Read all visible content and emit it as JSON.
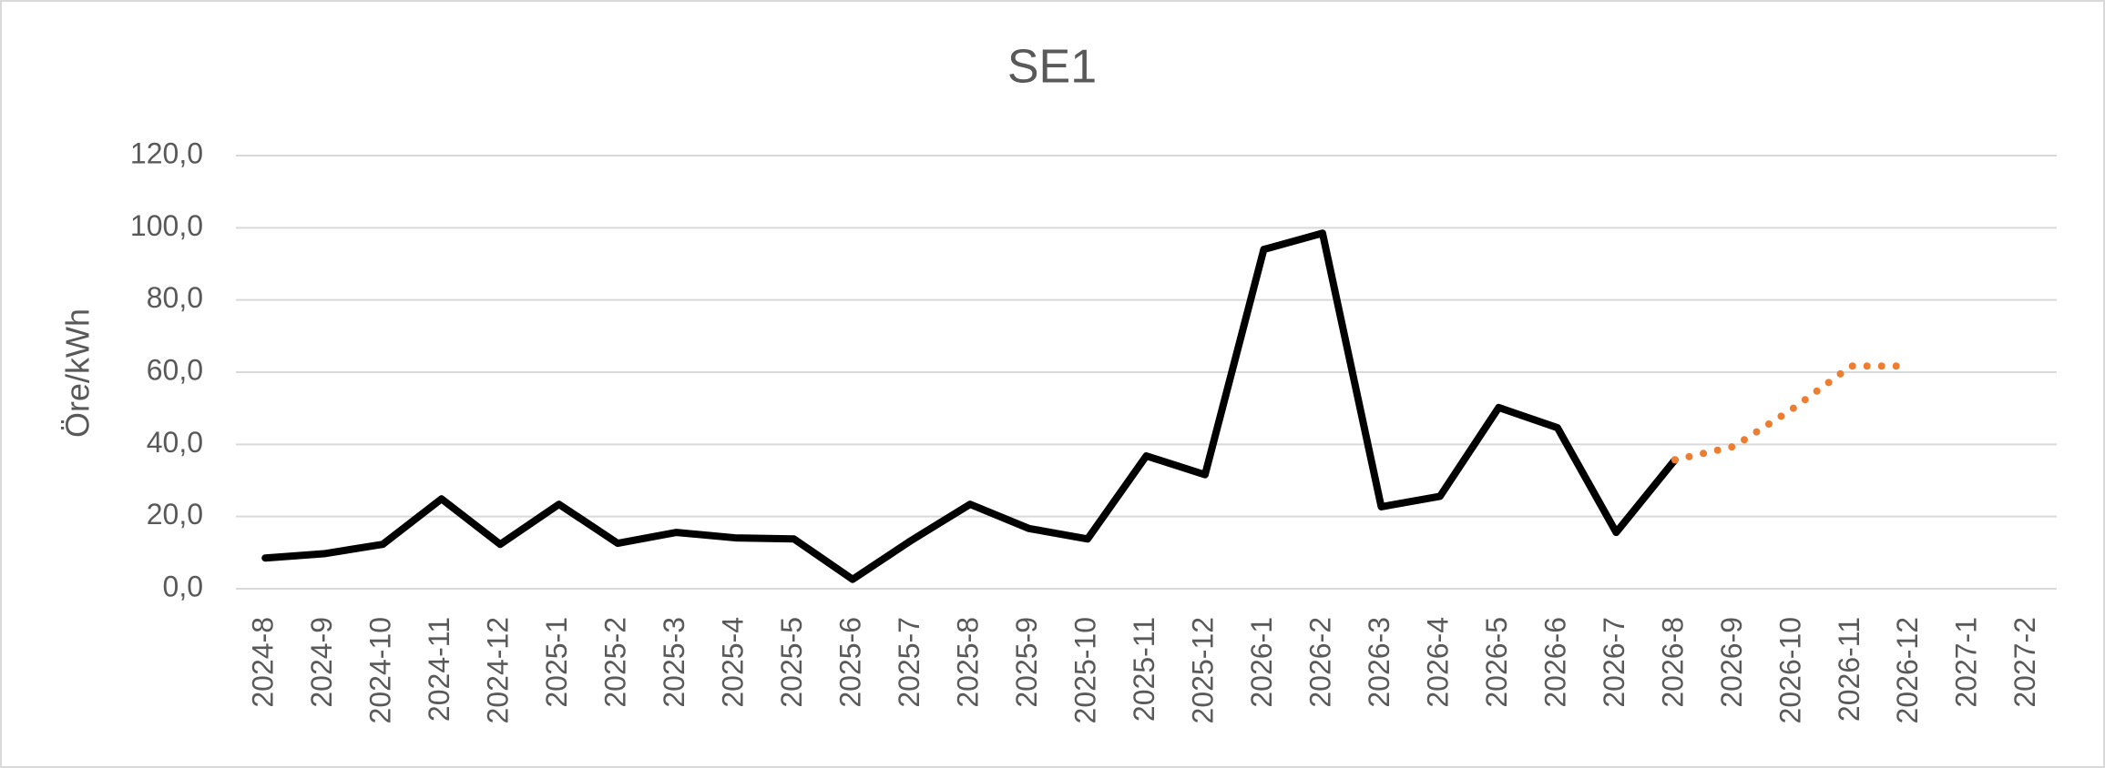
{
  "chart_data": {
    "type": "line",
    "title": "SE1",
    "y_label": "Öre/kWh",
    "categories": [
      "2024-8",
      "2024-9",
      "2024-10",
      "2024-11",
      "2024-12",
      "2025-1",
      "2025-2",
      "2025-3",
      "2025-4",
      "2025-5",
      "2025-6",
      "2025-7",
      "2025-8",
      "2025-9",
      "2025-10",
      "2025-11",
      "2025-12",
      "2026-1",
      "2026-2",
      "2026-3",
      "2026-4",
      "2026-5",
      "2026-6",
      "2026-7",
      "2026-8",
      "2026-9",
      "2026-10",
      "2026-11",
      "2026-12",
      "2027-1",
      "2027-2"
    ],
    "series": [
      {
        "color": "#000000",
        "style": "solid",
        "values": [
          8.5,
          9.7,
          12.3,
          24.9,
          12.3,
          23.4,
          12.6,
          15.6,
          14.1,
          13.8,
          2.6,
          13.4,
          23.4,
          16.7,
          13.8,
          36.8,
          31.6,
          94.0,
          98.5,
          22.7,
          25.6,
          50.2,
          44.6,
          15.6,
          35.7,
          null,
          null,
          null,
          null,
          null,
          null
        ]
      },
      {
        "color": "#ed7d31",
        "style": "dotted",
        "values": [
          null,
          null,
          null,
          null,
          null,
          null,
          null,
          null,
          null,
          null,
          null,
          null,
          null,
          null,
          null,
          null,
          null,
          null,
          null,
          null,
          null,
          null,
          null,
          null,
          35.7,
          39.4,
          49.8,
          61.7,
          61.7,
          null,
          null
        ]
      }
    ],
    "ylim": [
      0,
      120
    ],
    "yticks": [
      {
        "value": 0,
        "label": "0,0"
      },
      {
        "value": 20,
        "label": "20,0"
      },
      {
        "value": 40,
        "label": "40,0"
      },
      {
        "value": 60,
        "label": "60,0"
      },
      {
        "value": 80,
        "label": "80,0"
      },
      {
        "value": 100,
        "label": "100,0"
      },
      {
        "value": 120,
        "label": "120,0"
      }
    ],
    "grid": true
  }
}
